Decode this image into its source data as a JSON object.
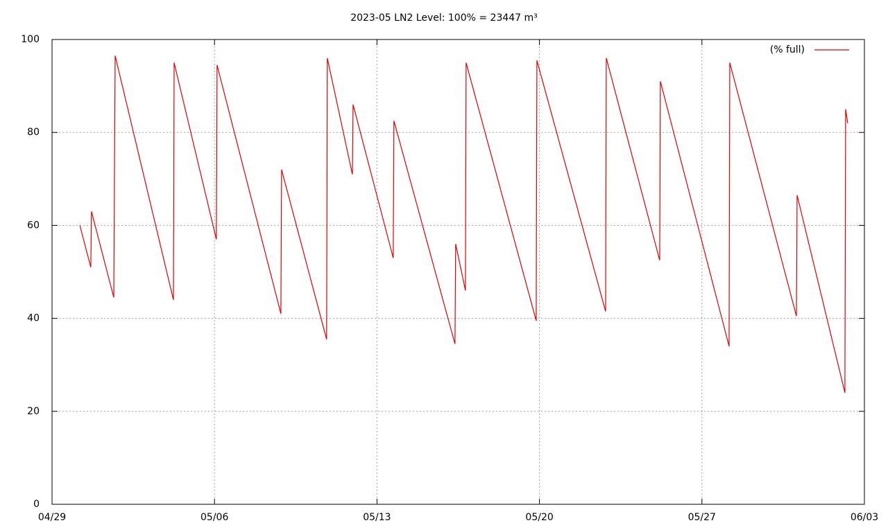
{
  "chart_data": {
    "type": "line",
    "title": "2023-05 LN2 Level: 100% = 23447 m³",
    "x": [
      1.2,
      1.67,
      1.7,
      2.66,
      2.72,
      5.23,
      5.26,
      7.08,
      7.11,
      9.86,
      9.89,
      11.83,
      11.86,
      12.94,
      12.97,
      14.7,
      14.73,
      17.36,
      17.39,
      17.81,
      17.84,
      20.86,
      20.89,
      23.85,
      23.88,
      26.18,
      26.21,
      29.17,
      29.2,
      32.07,
      32.1,
      34.16,
      34.19,
      34.28
    ],
    "series": [
      {
        "name": "(% full)",
        "color": "#e00000",
        "values": [
          60,
          51,
          63,
          44.5,
          96.5,
          44,
          95,
          57,
          94.5,
          41,
          72,
          35.5,
          96,
          71,
          86,
          53,
          82.5,
          34.5,
          56,
          46,
          95,
          39.5,
          95.5,
          41.5,
          96,
          52.5,
          91,
          34,
          95,
          40.5,
          66.5,
          24,
          85,
          82
        ]
      }
    ],
    "xlim": [
      0,
      35
    ],
    "xticks": [
      {
        "value": 0,
        "label": "04/29"
      },
      {
        "value": 7,
        "label": "05/06"
      },
      {
        "value": 14,
        "label": "05/13"
      },
      {
        "value": 21,
        "label": "05/20"
      },
      {
        "value": 28,
        "label": "05/27"
      },
      {
        "value": 35,
        "label": "06/03"
      }
    ],
    "ylim": [
      0,
      100
    ],
    "yticks": [
      0,
      20,
      40,
      60,
      80,
      100
    ],
    "grid": true,
    "legend": "top-right"
  }
}
